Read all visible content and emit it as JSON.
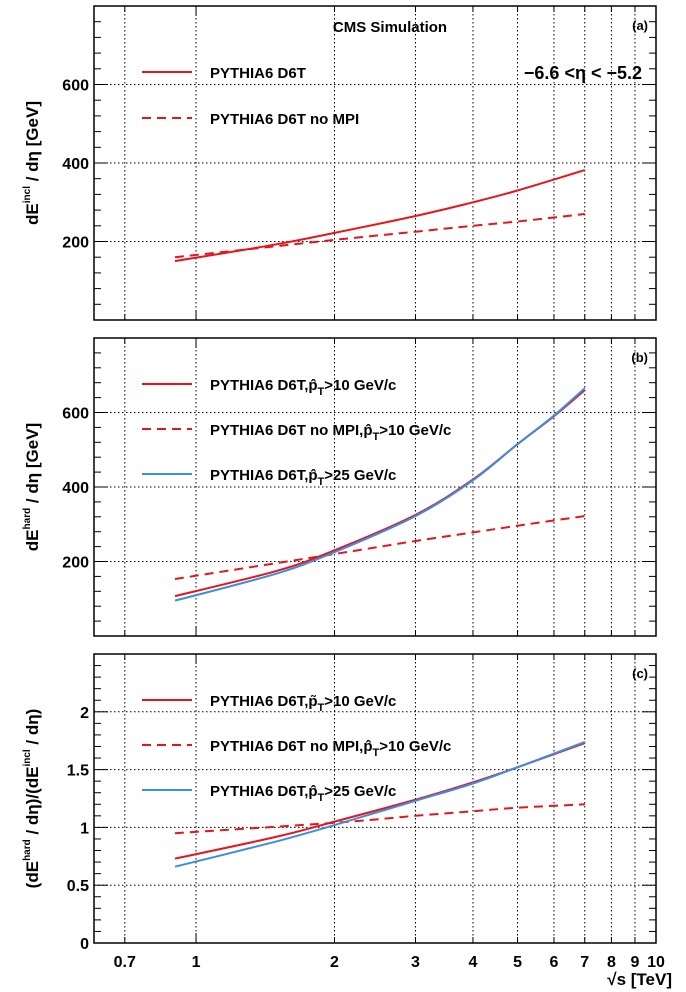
{
  "colors": {
    "red": "#e8141c",
    "blue": "#3a8fe0",
    "grid": "#000000",
    "frame": "#000000"
  },
  "xaxis": {
    "type": "log",
    "range": [
      0.6,
      10
    ],
    "ticks": [
      {
        "v": 0.7,
        "label": "0.7"
      },
      {
        "v": 1,
        "label": "1"
      },
      {
        "v": 2,
        "label": "2"
      },
      {
        "v": 3,
        "label": "3"
      },
      {
        "v": 4,
        "label": "4"
      },
      {
        "v": 5,
        "label": "5"
      },
      {
        "v": 6,
        "label": "6"
      },
      {
        "v": 7,
        "label": "7"
      },
      {
        "v": 8,
        "label": "8"
      },
      {
        "v": 9,
        "label": "9"
      },
      {
        "v": 10,
        "label": "10"
      }
    ],
    "label_prefix": "√",
    "label": "s [TeV]"
  },
  "chart_data": [
    {
      "id": "a",
      "type": "line",
      "panel_label": "(a)",
      "title": "CMS Simulation",
      "annotation": "−6.6 <η < −5.2",
      "ylabel": "dE^incl / dη [GeV]",
      "ylim": [
        0,
        800
      ],
      "yticks": [
        200,
        400,
        600
      ],
      "grid": true,
      "series": [
        {
          "name": "PYTHIA6 D6T",
          "style": "solid",
          "color": "red",
          "x": [
            0.9,
            1.5,
            2,
            3,
            4,
            5,
            7
          ],
          "y": [
            150,
            193,
            222,
            265,
            300,
            330,
            382
          ]
        },
        {
          "name": "PYTHIA6 D6T no MPI",
          "style": "dashed",
          "color": "red",
          "x": [
            0.9,
            2,
            3,
            4,
            5,
            7
          ],
          "y": [
            160,
            204,
            225,
            240,
            251,
            270
          ]
        }
      ]
    },
    {
      "id": "b",
      "type": "line",
      "panel_label": "(b)",
      "ylabel": "dE^hard / dη [GeV]",
      "ylim": [
        0,
        800
      ],
      "yticks": [
        200,
        400,
        600
      ],
      "grid": true,
      "series": [
        {
          "name": "PYTHIA6 D6T,p̂T>10 GeV/c",
          "style": "solid",
          "color": "red",
          "x": [
            0.9,
            1.5,
            2,
            3,
            4,
            5,
            6,
            7
          ],
          "y": [
            107,
            175,
            230,
            325,
            420,
            515,
            590,
            660
          ]
        },
        {
          "name": "PYTHIA6 D6T no MPI,p̂T>10 GeV/c",
          "style": "dashed",
          "color": "red",
          "x": [
            0.9,
            2,
            3,
            4,
            5,
            7
          ],
          "y": [
            153,
            220,
            255,
            278,
            296,
            322
          ]
        },
        {
          "name": "PYTHIA6 D6T,p̂T>25 GeV/c",
          "style": "solid",
          "color": "blue",
          "x": [
            0.9,
            1.5,
            2,
            3,
            4,
            5,
            6,
            7
          ],
          "y": [
            95,
            168,
            225,
            322,
            418,
            515,
            592,
            665
          ]
        }
      ]
    },
    {
      "id": "c",
      "type": "line",
      "panel_label": "(c)",
      "ylabel": "(dE^hard / dη)/(dE^incl / dη)",
      "ylim": [
        0,
        2.5
      ],
      "yticks": [
        {
          "v": 0,
          "label": "0"
        },
        {
          "v": 0.5,
          "label": "0.5"
        },
        {
          "v": 1,
          "label": "1"
        },
        {
          "v": 1.5,
          "label": "1.5"
        },
        {
          "v": 2,
          "label": "2"
        }
      ],
      "grid": true,
      "series": [
        {
          "name": "PYTHIA6 D6T,p̃T>10 GeV/c",
          "style": "solid",
          "color": "red",
          "x": [
            0.9,
            1.5,
            2,
            3,
            4,
            5,
            7
          ],
          "y": [
            0.73,
            0.92,
            1.05,
            1.24,
            1.39,
            1.52,
            1.73
          ]
        },
        {
          "name": "PYTHIA6 D6T no MPI,p̂T>10 GeV/c",
          "style": "dashed",
          "color": "red",
          "x": [
            0.9,
            2,
            3,
            4,
            5,
            7
          ],
          "y": [
            0.95,
            1.04,
            1.1,
            1.14,
            1.17,
            1.2
          ]
        },
        {
          "name": "PYTHIA6 D6T,p̂T>25 GeV/c",
          "style": "solid",
          "color": "blue",
          "x": [
            0.9,
            1.5,
            2,
            3,
            4,
            5,
            7
          ],
          "y": [
            0.66,
            0.88,
            1.02,
            1.23,
            1.38,
            1.52,
            1.74
          ]
        }
      ]
    }
  ],
  "legend_text": {
    "a": [
      {
        "parts": [
          "PYTHIA6 D6T"
        ]
      },
      {
        "parts": [
          "PYTHIA6 D6T no MPI"
        ]
      }
    ],
    "b": [
      {
        "pre": "PYTHIA6 D6T,",
        "hat": "p̂",
        "sub": "T",
        "post": ">10 GeV/c"
      },
      {
        "pre": "PYTHIA6 D6T no MPI,",
        "hat": "p̂",
        "sub": "T",
        "post": ">10 GeV/c"
      },
      {
        "pre": "PYTHIA6 D6T,",
        "hat": "p̂",
        "sub": "T",
        "post": ">25 GeV/c"
      }
    ],
    "c": [
      {
        "pre": "PYTHIA6 D6T,",
        "hat": "p̃",
        "sub": "T",
        "post": ">10 GeV/c"
      },
      {
        "pre": "PYTHIA6 D6T no MPI,",
        "hat": "p̂",
        "sub": "T",
        "post": ">10 GeV/c"
      },
      {
        "pre": "PYTHIA6 D6T,",
        "hat": "p̂",
        "sub": "T",
        "post": ">25 GeV/c"
      }
    ]
  },
  "ylabels": {
    "a": {
      "pre": "dE",
      "sup": "incl",
      "post": " / dη [GeV]"
    },
    "b": {
      "pre": "dE",
      "sup": "hard",
      "post": " / dη [GeV]"
    },
    "c": {
      "pre": "(dE",
      "sup": "hard",
      "mid": " / dη)/(dE",
      "sup2": "incl",
      "post": " / dη)"
    }
  }
}
